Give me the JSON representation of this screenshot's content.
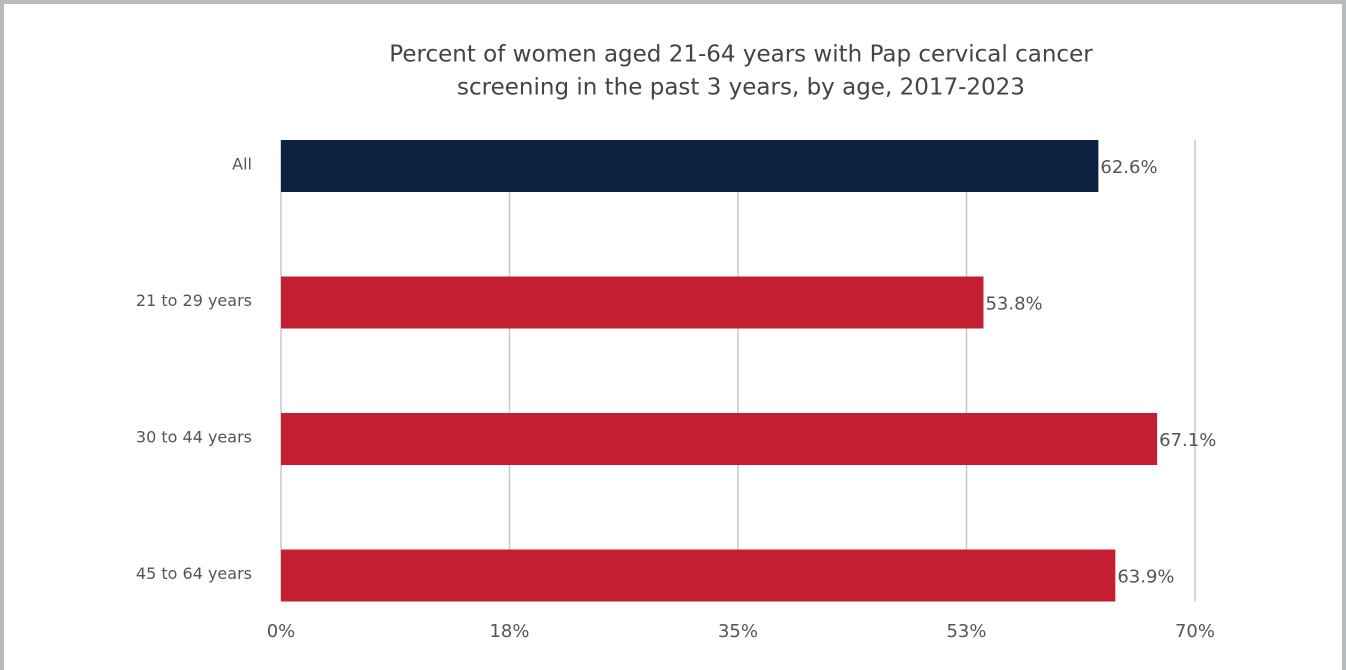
{
  "chart_data": {
    "type": "hbar",
    "title": [
      "Percent of women aged 21-64 years with Pap cervical cancer",
      "screening in the past 3 years, by age, 2017-2023"
    ],
    "categories": [
      "All",
      "21 to 29 years",
      "30 to 44 years",
      "45 to 64 years"
    ],
    "values": [
      62.6,
      53.8,
      67.1,
      63.9
    ],
    "value_labels": [
      "62.6%",
      "53.8%",
      "67.1%",
      "63.9%"
    ],
    "colors": [
      "#0a2240",
      "#c41e33",
      "#c41e33",
      "#c41e33"
    ],
    "xlim": [
      0,
      70
    ],
    "xticks": [
      {
        "value": 0,
        "label": "0%"
      },
      {
        "value": 17.5,
        "label": "18%"
      },
      {
        "value": 35,
        "label": "35%"
      },
      {
        "value": 52.5,
        "label": "53%"
      },
      {
        "value": 70,
        "label": "70%"
      }
    ],
    "grid": true
  }
}
